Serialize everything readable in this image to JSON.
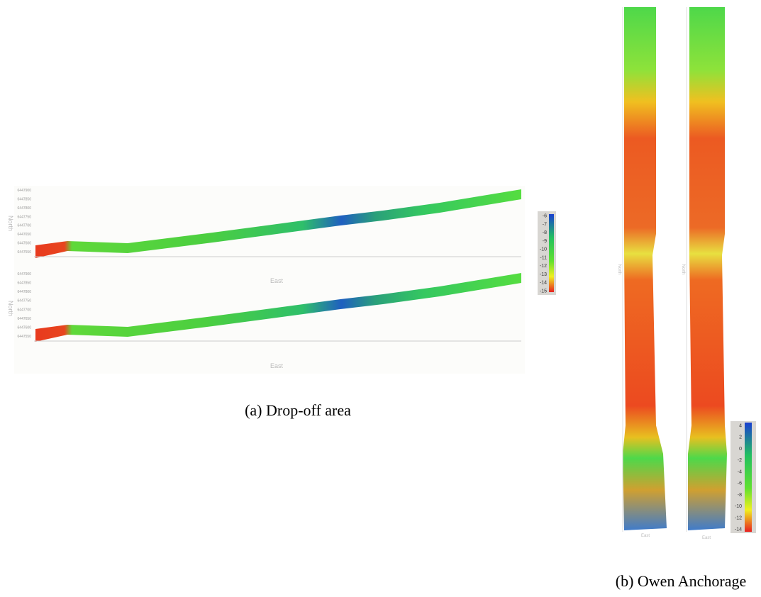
{
  "figure": {
    "panels": [
      {
        "caption": "(a) Drop-off area",
        "x_label": "East",
        "y_label": "North",
        "y_ticks": [
          6447900,
          6447850,
          6447800,
          6447750,
          6447700,
          6447650,
          6447600,
          6447550
        ],
        "colorbar_ticks": [
          -6,
          -7,
          -8,
          -9,
          -10,
          -11,
          -12,
          -13,
          -14,
          -15
        ]
      },
      {
        "caption": "(b) Owen Anchorage",
        "x_label": "East",
        "y_label": "North",
        "colorbar_ticks": [
          4,
          2,
          0,
          -2,
          -4,
          -6,
          -8,
          -10,
          -12,
          -14
        ]
      }
    ]
  }
}
